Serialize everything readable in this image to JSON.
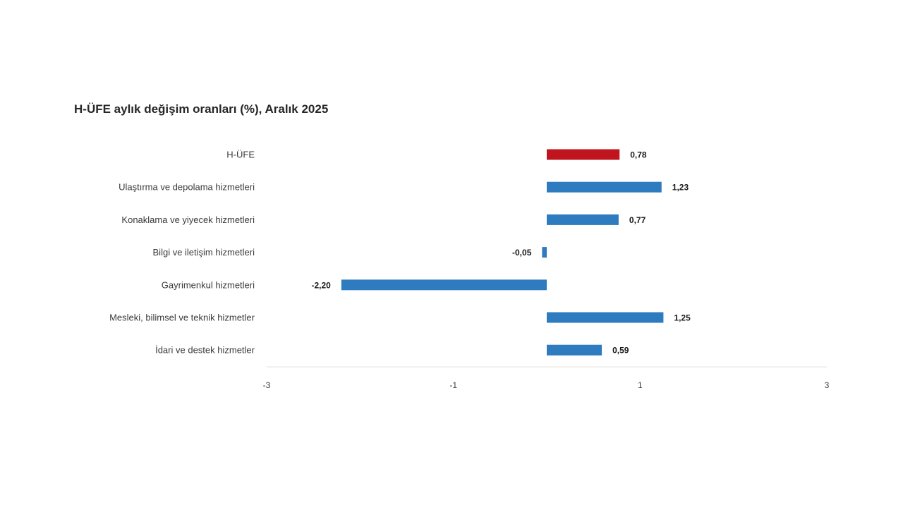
{
  "chart_data": {
    "type": "bar",
    "orientation": "horizontal",
    "title": "H-ÜFE aylık değişim oranları (%), Aralık 2025",
    "xlabel": "",
    "ylabel": "",
    "xlim": [
      -3,
      3
    ],
    "xticks": [
      -3,
      -1,
      1,
      3
    ],
    "xtick_labels": [
      "-3",
      "-1",
      "1",
      "3"
    ],
    "grid": false,
    "categories": [
      "H-ÜFE",
      "Ulaştırma ve depolama hizmetleri",
      "Konaklama ve yiyecek hizmetleri",
      "Bilgi ve iletişim hizmetleri",
      "Gayrimenkul hizmetleri",
      "Mesleki, bilimsel ve teknik hizmetler",
      "İdari ve destek hizmetler"
    ],
    "values": [
      0.78,
      1.23,
      0.77,
      -0.05,
      -2.2,
      1.25,
      0.59
    ],
    "value_labels": [
      "0,78",
      "1,23",
      "0,77",
      "-0,05",
      "-2,20",
      "1,25",
      "0,59"
    ],
    "colors": [
      "#c0141f",
      "#2e7bc0",
      "#2e7bc0",
      "#2e7bc0",
      "#2e7bc0",
      "#2e7bc0",
      "#2e7bc0"
    ]
  }
}
